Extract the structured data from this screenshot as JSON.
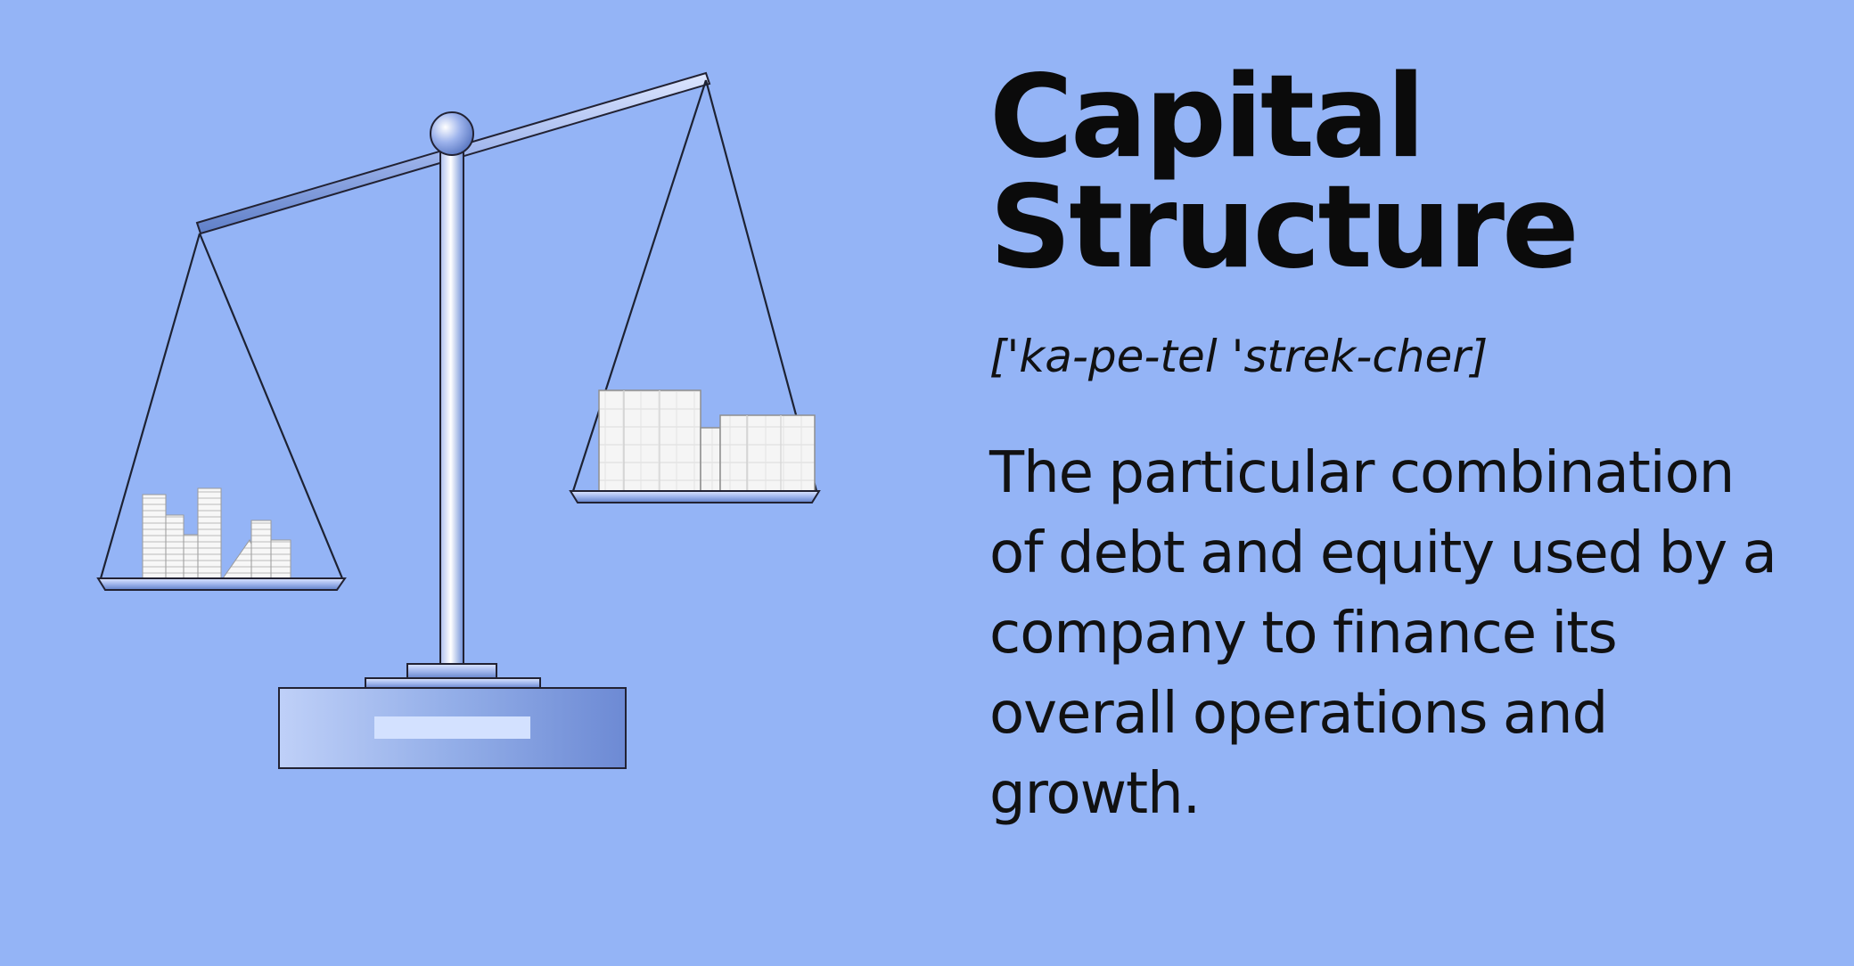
{
  "title": {
    "line1": "Capital",
    "line2": "Structure"
  },
  "pronunciation": "['ka-pe-tel 'strek-cher]",
  "definition": {
    "lines": [
      "The particular combination",
      "of debt and equity used by a",
      "company to finance its",
      "overall operations and",
      "growth."
    ]
  },
  "illustration": {
    "subject": "balance-scale-icon",
    "left_pan": "light-stacked-documents",
    "right_pan": "heavy-stacked-documents"
  },
  "colors": {
    "background": "#94b4f6",
    "scale_metal": "#7d9ce0",
    "paper": "#f7f7f7",
    "text": "#111111"
  }
}
